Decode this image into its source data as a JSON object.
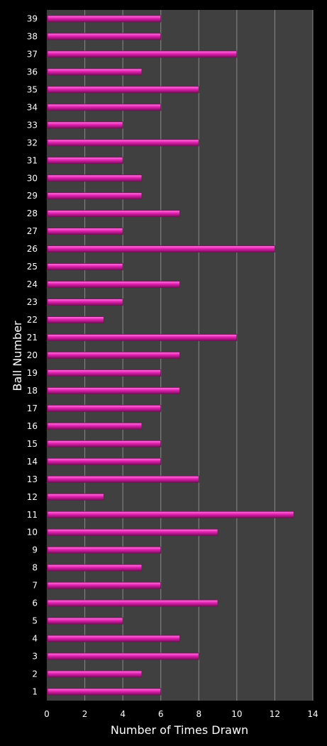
{
  "chart_data": {
    "type": "bar",
    "orientation": "horizontal",
    "xlabel": "Number of Times Drawn",
    "ylabel": "Ball Number",
    "xlim": [
      0,
      14
    ],
    "xticks": [
      0,
      2,
      4,
      6,
      8,
      10,
      12,
      14
    ],
    "grid": true,
    "colors": {
      "bar": "#e21fb0",
      "bar_highlight": "#ff7ae0",
      "bar_shadow": "#7a0d5c",
      "plot_bg": "#404040",
      "page_bg": "#000000",
      "grid": "#8a8a8a",
      "text": "#ffffff"
    },
    "categories": [
      "1",
      "2",
      "3",
      "4",
      "5",
      "6",
      "7",
      "8",
      "9",
      "10",
      "11",
      "12",
      "13",
      "14",
      "15",
      "16",
      "17",
      "18",
      "19",
      "20",
      "21",
      "22",
      "23",
      "24",
      "25",
      "26",
      "27",
      "28",
      "29",
      "30",
      "31",
      "32",
      "33",
      "34",
      "35",
      "36",
      "37",
      "38",
      "39"
    ],
    "values": [
      6,
      5,
      8,
      7,
      4,
      9,
      6,
      5,
      6,
      9,
      13,
      3,
      8,
      6,
      6,
      5,
      6,
      7,
      6,
      7,
      10,
      3,
      4,
      7,
      4,
      12,
      4,
      7,
      5,
      5,
      4,
      8,
      4,
      6,
      8,
      5,
      10,
      6,
      6
    ]
  }
}
